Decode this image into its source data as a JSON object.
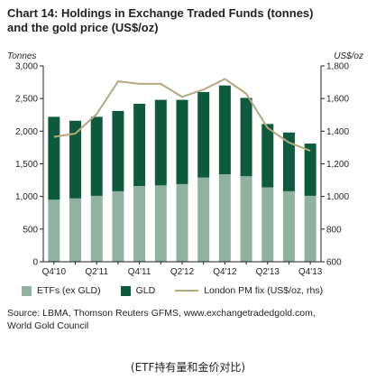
{
  "title_line1": "Chart 14: Holdings in Exchange Traded Funds (tonnes)",
  "title_line2": "and the gold price (US$/oz)",
  "left_unit": "Tonnes",
  "right_unit": "US$/oz",
  "source_line1": "Source: LBMA, Thomson Reuters GFMS, www.exchangetradedgold.com,",
  "source_line2": "World Gold Council",
  "caption": "(ETF持有量和金价对比)",
  "colors": {
    "etf": "#8fb3a0",
    "gld": "#0e5a3c",
    "line": "#b5a87a",
    "axis": "#231f20"
  },
  "chart_data": {
    "type": "bar",
    "stacked": true,
    "categories": [
      "Q4'10",
      "Q1'11",
      "Q2'11",
      "Q3'11",
      "Q4'11",
      "Q1'12",
      "Q2'12",
      "Q3'12",
      "Q4'12",
      "Q1'13",
      "Q2'13",
      "Q3'13",
      "Q4'13"
    ],
    "x_tick_labels": [
      "Q4'10",
      "",
      "Q2'11",
      "",
      "Q4'11",
      "",
      "Q2'12",
      "",
      "Q4'12",
      "",
      "Q2'13",
      "",
      "Q4'13"
    ],
    "series": [
      {
        "name": "ETFs (ex GLD)",
        "axis": "left",
        "values": [
          950,
          970,
          1010,
          1080,
          1160,
          1170,
          1190,
          1290,
          1340,
          1310,
          1140,
          1080,
          1010
        ]
      },
      {
        "name": "GLD",
        "axis": "left",
        "values": [
          1270,
          1190,
          1210,
          1230,
          1260,
          1310,
          1290,
          1310,
          1360,
          1200,
          970,
          900,
          800
        ]
      },
      {
        "name": "London PM fix (US$/oz, rhs)",
        "axis": "right",
        "type": "line",
        "values": [
          1365,
          1385,
          1505,
          1705,
          1690,
          1690,
          1610,
          1655,
          1720,
          1630,
          1420,
          1330,
          1280
        ]
      }
    ],
    "y_left": {
      "min": 0,
      "max": 3000,
      "ticks": [
        0,
        500,
        1000,
        1500,
        2000,
        2500,
        3000
      ],
      "tick_labels": [
        "0",
        "500",
        "1,000",
        "1,500",
        "2,000",
        "2,500",
        "3,000"
      ]
    },
    "y_right": {
      "min": 600,
      "max": 1800,
      "ticks": [
        600,
        800,
        1000,
        1200,
        1400,
        1600,
        1800
      ],
      "tick_labels": [
        "600",
        "800",
        "1,000",
        "1,200",
        "1,400",
        "1,600",
        "1,800"
      ]
    },
    "grid": false,
    "legend_position": "bottom"
  }
}
